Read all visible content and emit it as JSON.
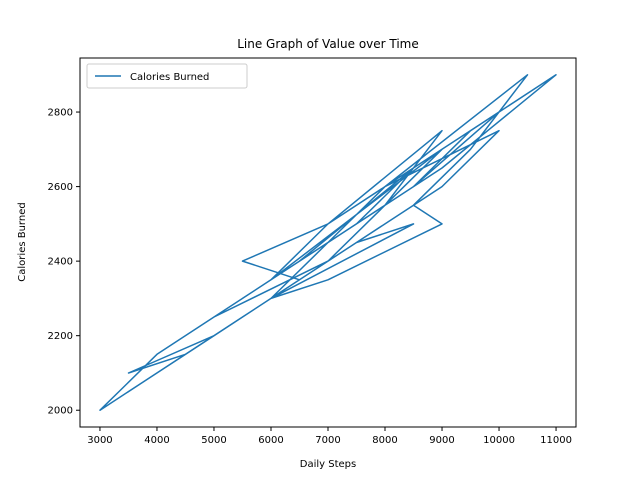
{
  "chart_data": {
    "type": "line",
    "title": "Line Graph of Value over Time",
    "xlabel": "Daily Steps",
    "ylabel": "Calories Burned",
    "xlim": [
      2650,
      11350
    ],
    "ylim": [
      1955,
      2945
    ],
    "xticks": [
      3000,
      4000,
      5000,
      6000,
      7000,
      8000,
      9000,
      10000,
      11000
    ],
    "yticks": [
      2000,
      2200,
      2400,
      2600,
      2800
    ],
    "grid": false,
    "legend": {
      "placement": "top-left"
    },
    "series": [
      {
        "name": "Calories Burned",
        "color": "#1f77b4",
        "x": [
          3000,
          4500,
          5500,
          6500,
          7500,
          8500,
          9000,
          7000,
          6000,
          5000,
          3500,
          4500,
          5500,
          6500,
          7500,
          8500,
          9500,
          10500,
          8000,
          7000,
          6000,
          5000,
          4000,
          3000,
          5000,
          6000,
          7000,
          8000,
          9000,
          7500,
          6500,
          5500,
          7000,
          8000,
          9000,
          10000,
          8500,
          7500,
          6500,
          5500,
          8000,
          9000,
          7000,
          6000,
          6500,
          7500,
          8500,
          9500,
          11000,
          9000,
          8000,
          7000,
          6000,
          5000,
          7000,
          8000,
          9000,
          10000,
          8000,
          7000,
          6000,
          8500,
          7500,
          6500,
          7000,
          8000,
          9000,
          6000,
          7500,
          8500,
          6500,
          7000,
          8000
        ],
        "y": [
          2000,
          2150,
          2250,
          2350,
          2450,
          2550,
          2500,
          2350,
          2300,
          2200,
          2100,
          2150,
          2250,
          2350,
          2450,
          2550,
          2700,
          2900,
          2600,
          2450,
          2350,
          2250,
          2150,
          2000,
          2200,
          2300,
          2400,
          2500,
          2600,
          2450,
          2350,
          2400,
          2500,
          2600,
          2700,
          2800,
          2600,
          2500,
          2400,
          2300,
          2550,
          2750,
          2500,
          2350,
          2400,
          2500,
          2600,
          2750,
          2900,
          2650,
          2550,
          2450,
          2350,
          2250,
          2400,
          2500,
          2600,
          2750,
          2600,
          2450,
          2300,
          2500,
          2450,
          2350,
          2400,
          2550,
          2700,
          2350,
          2500,
          2650,
          2400,
          2450,
          2550
        ]
      }
    ]
  }
}
